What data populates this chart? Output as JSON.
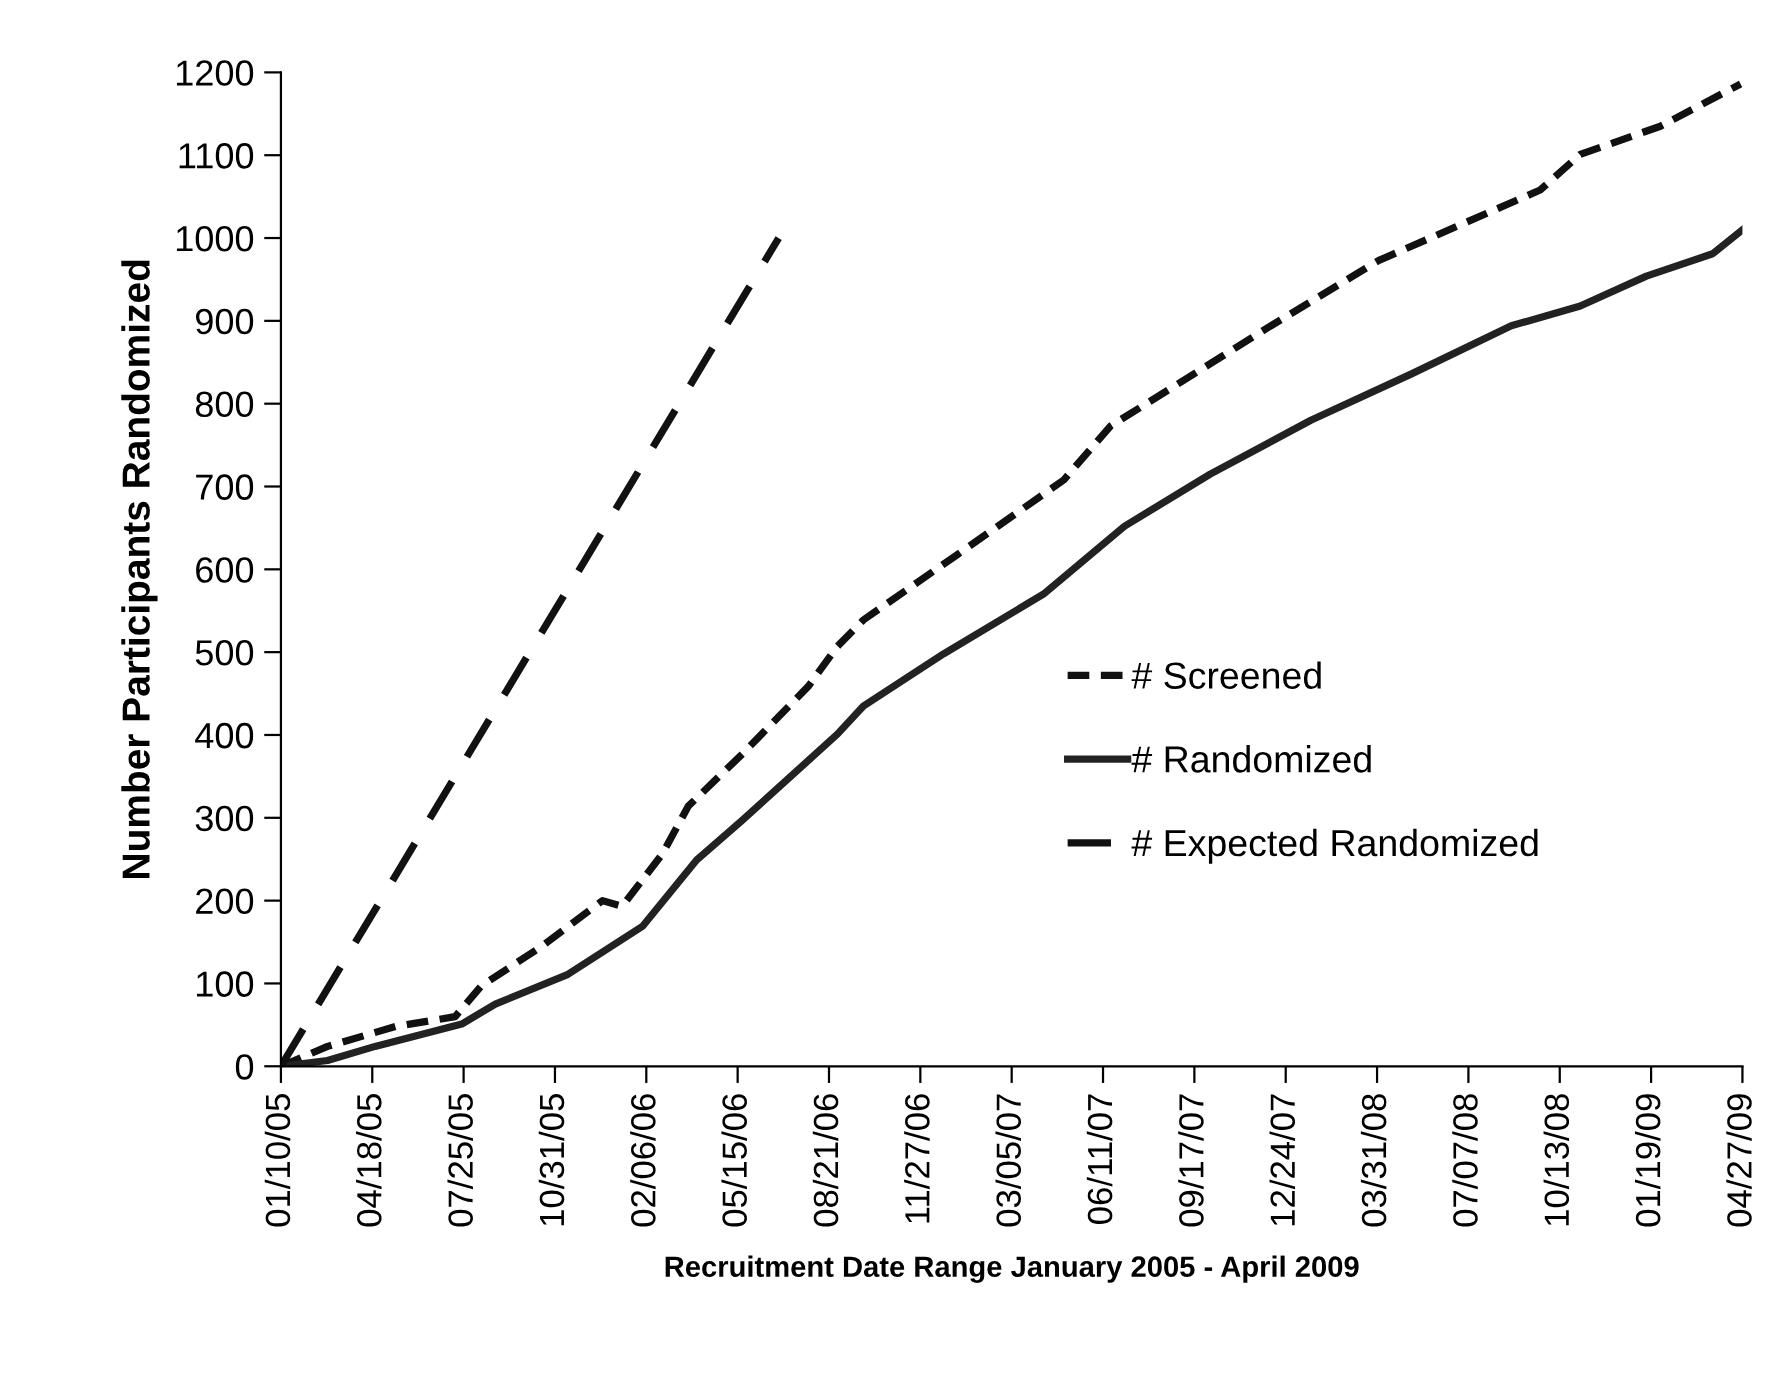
{
  "chart_data": {
    "type": "line",
    "xlabel": "Recruitment Date Range January 2005 - April 2009",
    "ylabel": "Number Participants Randomized",
    "ylim": [
      0,
      1200
    ],
    "yticks": [
      0,
      100,
      200,
      300,
      400,
      500,
      600,
      700,
      800,
      900,
      1000,
      1100,
      1200
    ],
    "xlim": [
      "2005-01-10",
      "2009-04-27"
    ],
    "xticks": [
      {
        "value": "2005-01-10",
        "label": "01/10/05"
      },
      {
        "value": "2005-04-18",
        "label": "04/18/05"
      },
      {
        "value": "2005-07-25",
        "label": "07/25/05"
      },
      {
        "value": "2005-10-31",
        "label": "10/31/05"
      },
      {
        "value": "2006-02-06",
        "label": "02/06/06"
      },
      {
        "value": "2006-05-15",
        "label": "05/15/06"
      },
      {
        "value": "2006-08-21",
        "label": "08/21/06"
      },
      {
        "value": "2006-11-27",
        "label": "11/27/06"
      },
      {
        "value": "2007-03-05",
        "label": "03/05/07"
      },
      {
        "value": "2007-06-11",
        "label": "06/11/07"
      },
      {
        "value": "2007-09-17",
        "label": "09/17/07"
      },
      {
        "value": "2007-12-24",
        "label": "12/24/07"
      },
      {
        "value": "2008-03-31",
        "label": "03/31/08"
      },
      {
        "value": "2008-07-07",
        "label": "07/07/08"
      },
      {
        "value": "2008-10-13",
        "label": "10/13/08"
      },
      {
        "value": "2009-01-19",
        "label": "01/19/09"
      },
      {
        "value": "2009-04-27",
        "label": "04/27/09"
      }
    ],
    "grid": false,
    "legend": "lower right",
    "series": [
      {
        "name": "# Screened",
        "color": "#111111",
        "line_style": "dotted",
        "x": [
          "2005-01-10",
          "2005-03-01",
          "2005-05-13",
          "2005-07-16",
          "2005-08-13",
          "2005-10-17",
          "2005-12-21",
          "2006-01-11",
          "2006-02-23",
          "2006-03-23",
          "2006-05-20",
          "2006-07-30",
          "2006-08-30",
          "2006-09-27",
          "2007-01-06",
          "2007-04-30",
          "2007-06-19",
          "2007-12-08",
          "2008-04-02",
          "2008-09-22",
          "2008-11-04",
          "2009-01-29",
          "2009-04-25"
        ],
        "values": [
          0,
          24,
          48,
          60,
          97,
          145,
          200,
          193,
          256,
          314,
          377,
          459,
          507,
          539,
          618,
          708,
          773,
          894,
          973,
          1058,
          1101,
          1135,
          1186
        ]
      },
      {
        "name": "# Randomized",
        "color": "#222222",
        "line_style": "solid",
        "x": [
          "2005-01-10",
          "2005-03-01",
          "2005-04-21",
          "2005-07-23",
          "2005-08-28",
          "2005-11-14",
          "2006-02-02",
          "2006-04-01",
          "2006-05-20",
          "2006-08-30",
          "2006-09-27",
          "2006-12-22",
          "2007-04-08",
          "2007-07-04",
          "2007-10-04",
          "2008-01-20",
          "2008-05-07",
          "2008-08-22",
          "2008-11-04",
          "2009-01-14",
          "2009-03-26",
          "2009-04-27"
        ],
        "values": [
          0,
          7,
          24,
          51,
          75,
          111,
          169,
          249,
          297,
          401,
          435,
          498,
          570,
          652,
          715,
          780,
          836,
          894,
          918,
          954,
          981,
          1010
        ]
      },
      {
        "name": "# Expected Randomized",
        "color": "#111111",
        "line_style": "dashed",
        "x": [
          "2005-01-10",
          "2006-06-28"
        ],
        "values": [
          0,
          1000
        ]
      }
    ]
  }
}
